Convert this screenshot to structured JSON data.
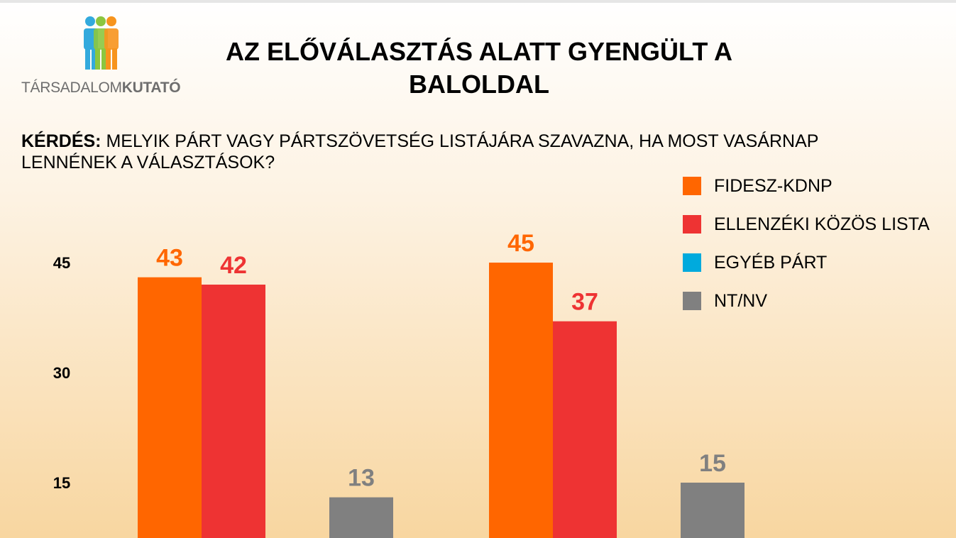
{
  "header": {
    "title": "AZ ELŐVÁLASZTÁS ALATT GYENGÜLT A BALOLDAL",
    "logo_text_light": "TÁRSADALOM",
    "logo_text_bold": "KUTATÓ"
  },
  "question": {
    "prefix": "KÉRDÉS:",
    "text": "MELYIK PÁRT VAGY PÁRTSZÖVETSÉG LISTÁJÁRA SZAVAZNA, HA MOST VASÁRNAP LENNÉNEK A VÁLASZTÁSOK?"
  },
  "colors": {
    "fidesz": "#ff6600",
    "ellenzek": "#ee3333",
    "egyeb": "#00aadd",
    "ntnv": "#808080"
  },
  "chart_data": {
    "type": "bar",
    "title": "AZ ELŐVÁLASZTÁS ALATT GYENGÜLT A BALOLDAL",
    "xlabel": "",
    "ylabel": "",
    "yticks": [
      15,
      30,
      45
    ],
    "ylim": [
      7,
      52
    ],
    "grid": false,
    "legend_position": "top-right",
    "series": [
      {
        "name": "FIDESZ-KDNP",
        "color": "#ff6600",
        "values": [
          43,
          45
        ]
      },
      {
        "name": "ELLENZÉKI KÖZÖS LISTA",
        "color": "#ee3333",
        "values": [
          42,
          37
        ]
      },
      {
        "name": "EGYÉB PÁRT",
        "color": "#00aadd",
        "values": [
          null,
          null
        ]
      },
      {
        "name": "NT/NV",
        "color": "#808080",
        "values": [
          13,
          15
        ]
      }
    ]
  }
}
